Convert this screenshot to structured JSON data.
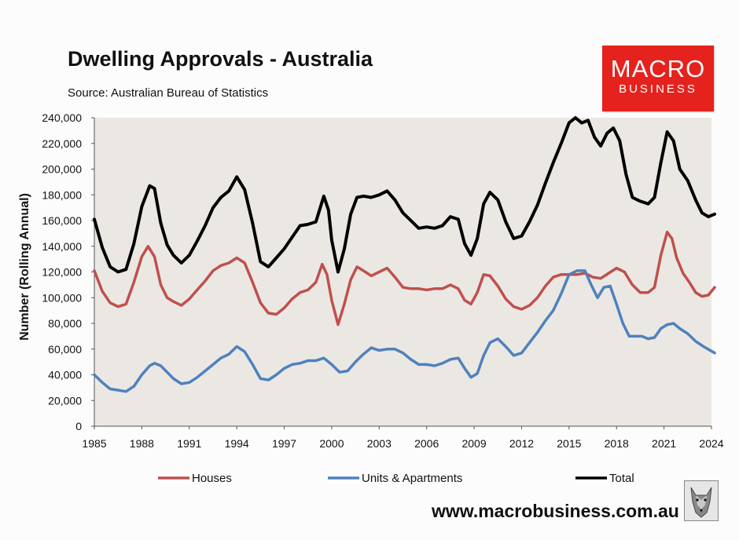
{
  "header": {
    "title": "Dwelling Approvals - Australia",
    "source": "Source: Australian Bureau of Statistics"
  },
  "logo": {
    "line1": "MACRO",
    "line2": "BUSINESS",
    "color": "#e5221d"
  },
  "footer": {
    "website": "www.macrobusiness.com.au",
    "wolf_icon": "wolf-head-icon"
  },
  "chart_data": {
    "type": "line",
    "title": "Dwelling Approvals - Australia",
    "ylabel": "Number (Rolling Annual)",
    "xlabel": "",
    "ylim": [
      0,
      240000
    ],
    "xlim": [
      1985,
      2024
    ],
    "y_ticks": [
      "0",
      "20,000",
      "40,000",
      "60,000",
      "80,000",
      "100,000",
      "120,000",
      "140,000",
      "160,000",
      "180,000",
      "200,000",
      "220,000",
      "240,000"
    ],
    "x_ticks": [
      "1985",
      "1988",
      "1991",
      "1994",
      "1997",
      "2000",
      "2003",
      "2006",
      "2009",
      "2012",
      "2015",
      "2018",
      "2021",
      "2024"
    ],
    "plot_background": "#ebe8e4",
    "grid": false,
    "legend_position": "bottom",
    "series": [
      {
        "name": "Houses",
        "color": "#c0504d",
        "points": [
          [
            1985,
            121000
          ],
          [
            1985.5,
            105000
          ],
          [
            1986,
            96000
          ],
          [
            1986.5,
            93000
          ],
          [
            1987,
            95000
          ],
          [
            1987.5,
            112000
          ],
          [
            1988,
            132000
          ],
          [
            1988.4,
            140000
          ],
          [
            1988.8,
            132000
          ],
          [
            1989.2,
            110000
          ],
          [
            1989.6,
            100000
          ],
          [
            1990,
            97000
          ],
          [
            1990.5,
            94000
          ],
          [
            1991,
            99000
          ],
          [
            1991.5,
            106000
          ],
          [
            1992,
            113000
          ],
          [
            1992.5,
            121000
          ],
          [
            1993,
            125000
          ],
          [
            1993.5,
            127000
          ],
          [
            1994,
            131000
          ],
          [
            1994.5,
            127000
          ],
          [
            1995,
            112000
          ],
          [
            1995.5,
            96000
          ],
          [
            1996,
            88000
          ],
          [
            1996.5,
            87000
          ],
          [
            1997,
            92000
          ],
          [
            1997.5,
            99000
          ],
          [
            1998,
            104000
          ],
          [
            1998.5,
            106000
          ],
          [
            1999,
            112000
          ],
          [
            1999.4,
            126000
          ],
          [
            1999.7,
            118000
          ],
          [
            2000,
            98000
          ],
          [
            2000.4,
            79000
          ],
          [
            2000.8,
            95000
          ],
          [
            2001.2,
            114000
          ],
          [
            2001.6,
            124000
          ],
          [
            2002,
            121000
          ],
          [
            2002.5,
            117000
          ],
          [
            2003,
            120000
          ],
          [
            2003.5,
            123000
          ],
          [
            2004,
            116000
          ],
          [
            2004.5,
            108000
          ],
          [
            2005,
            107000
          ],
          [
            2005.5,
            107000
          ],
          [
            2006,
            106000
          ],
          [
            2006.5,
            107000
          ],
          [
            2007,
            107000
          ],
          [
            2007.5,
            110000
          ],
          [
            2008,
            107000
          ],
          [
            2008.4,
            98000
          ],
          [
            2008.8,
            95000
          ],
          [
            2009.2,
            104000
          ],
          [
            2009.6,
            118000
          ],
          [
            2010,
            117000
          ],
          [
            2010.5,
            109000
          ],
          [
            2011,
            99000
          ],
          [
            2011.5,
            93000
          ],
          [
            2012,
            91000
          ],
          [
            2012.5,
            94000
          ],
          [
            2013,
            100000
          ],
          [
            2013.5,
            109000
          ],
          [
            2014,
            116000
          ],
          [
            2014.5,
            118000
          ],
          [
            2015,
            118000
          ],
          [
            2015.5,
            118000
          ],
          [
            2016,
            119000
          ],
          [
            2016.5,
            116000
          ],
          [
            2017,
            115000
          ],
          [
            2017.5,
            119000
          ],
          [
            2018,
            123000
          ],
          [
            2018.5,
            120000
          ],
          [
            2019,
            110000
          ],
          [
            2019.5,
            104000
          ],
          [
            2020,
            104000
          ],
          [
            2020.4,
            108000
          ],
          [
            2020.8,
            133000
          ],
          [
            2021.2,
            151000
          ],
          [
            2021.5,
            146000
          ],
          [
            2021.8,
            131000
          ],
          [
            2022.2,
            119000
          ],
          [
            2022.6,
            112000
          ],
          [
            2023,
            104000
          ],
          [
            2023.4,
            101000
          ],
          [
            2023.8,
            102000
          ],
          [
            2024.2,
            108000
          ]
        ]
      },
      {
        "name": "Units & Apartments",
        "color": "#4f81bd",
        "points": [
          [
            1985,
            40000
          ],
          [
            1985.5,
            34000
          ],
          [
            1986,
            29000
          ],
          [
            1986.5,
            28000
          ],
          [
            1987,
            27000
          ],
          [
            1987.5,
            31000
          ],
          [
            1988,
            40000
          ],
          [
            1988.5,
            47000
          ],
          [
            1988.8,
            49000
          ],
          [
            1989.2,
            47000
          ],
          [
            1989.6,
            42000
          ],
          [
            1990,
            37000
          ],
          [
            1990.5,
            33000
          ],
          [
            1991,
            34000
          ],
          [
            1991.5,
            38000
          ],
          [
            1992,
            43000
          ],
          [
            1992.5,
            48000
          ],
          [
            1993,
            53000
          ],
          [
            1993.5,
            56000
          ],
          [
            1994,
            62000
          ],
          [
            1994.5,
            58000
          ],
          [
            1995,
            48000
          ],
          [
            1995.5,
            37000
          ],
          [
            1996,
            36000
          ],
          [
            1996.5,
            40000
          ],
          [
            1997,
            45000
          ],
          [
            1997.5,
            48000
          ],
          [
            1998,
            49000
          ],
          [
            1998.5,
            51000
          ],
          [
            1999,
            51000
          ],
          [
            1999.5,
            53000
          ],
          [
            2000,
            48000
          ],
          [
            2000.5,
            42000
          ],
          [
            2001,
            43000
          ],
          [
            2001.5,
            50000
          ],
          [
            2002,
            56000
          ],
          [
            2002.5,
            61000
          ],
          [
            2003,
            59000
          ],
          [
            2003.5,
            60000
          ],
          [
            2004,
            60000
          ],
          [
            2004.5,
            57000
          ],
          [
            2005,
            52000
          ],
          [
            2005.5,
            48000
          ],
          [
            2006,
            48000
          ],
          [
            2006.5,
            47000
          ],
          [
            2007,
            49000
          ],
          [
            2007.5,
            52000
          ],
          [
            2008,
            53000
          ],
          [
            2008.4,
            45000
          ],
          [
            2008.8,
            38000
          ],
          [
            2009.2,
            41000
          ],
          [
            2009.6,
            55000
          ],
          [
            2010,
            65000
          ],
          [
            2010.5,
            68000
          ],
          [
            2011,
            62000
          ],
          [
            2011.5,
            55000
          ],
          [
            2012,
            57000
          ],
          [
            2012.5,
            65000
          ],
          [
            2013,
            73000
          ],
          [
            2013.5,
            82000
          ],
          [
            2014,
            90000
          ],
          [
            2014.5,
            103000
          ],
          [
            2015,
            118000
          ],
          [
            2015.5,
            121000
          ],
          [
            2016,
            121000
          ],
          [
            2016.4,
            110000
          ],
          [
            2016.8,
            100000
          ],
          [
            2017.2,
            108000
          ],
          [
            2017.6,
            109000
          ],
          [
            2018,
            95000
          ],
          [
            2018.4,
            80000
          ],
          [
            2018.8,
            70000
          ],
          [
            2019.2,
            70000
          ],
          [
            2019.6,
            70000
          ],
          [
            2020,
            68000
          ],
          [
            2020.4,
            69000
          ],
          [
            2020.8,
            76000
          ],
          [
            2021.2,
            79000
          ],
          [
            2021.6,
            80000
          ],
          [
            2022,
            76000
          ],
          [
            2022.5,
            72000
          ],
          [
            2023,
            66000
          ],
          [
            2023.5,
            62000
          ],
          [
            2024.2,
            57000
          ]
        ]
      },
      {
        "name": "Total",
        "color": "#000000",
        "points": [
          [
            1985,
            161000
          ],
          [
            1985.5,
            139000
          ],
          [
            1986,
            124000
          ],
          [
            1986.5,
            120000
          ],
          [
            1987,
            122000
          ],
          [
            1987.5,
            142000
          ],
          [
            1988,
            171000
          ],
          [
            1988.5,
            187000
          ],
          [
            1988.8,
            185000
          ],
          [
            1989.2,
            158000
          ],
          [
            1989.6,
            141000
          ],
          [
            1990,
            133000
          ],
          [
            1990.5,
            127000
          ],
          [
            1991,
            133000
          ],
          [
            1991.5,
            144000
          ],
          [
            1992,
            156000
          ],
          [
            1992.5,
            170000
          ],
          [
            1993,
            178000
          ],
          [
            1993.5,
            183000
          ],
          [
            1994,
            194000
          ],
          [
            1994.5,
            184000
          ],
          [
            1995,
            158000
          ],
          [
            1995.5,
            128000
          ],
          [
            1996,
            124000
          ],
          [
            1996.5,
            131000
          ],
          [
            1997,
            138000
          ],
          [
            1997.5,
            147000
          ],
          [
            1998,
            156000
          ],
          [
            1998.5,
            157000
          ],
          [
            1999,
            159000
          ],
          [
            1999.5,
            179000
          ],
          [
            1999.8,
            168000
          ],
          [
            2000,
            145000
          ],
          [
            2000.4,
            120000
          ],
          [
            2000.8,
            138000
          ],
          [
            2001.2,
            165000
          ],
          [
            2001.6,
            178000
          ],
          [
            2002,
            179000
          ],
          [
            2002.5,
            178000
          ],
          [
            2003,
            180000
          ],
          [
            2003.5,
            183000
          ],
          [
            2004,
            176000
          ],
          [
            2004.5,
            166000
          ],
          [
            2005,
            160000
          ],
          [
            2005.5,
            154000
          ],
          [
            2006,
            155000
          ],
          [
            2006.5,
            154000
          ],
          [
            2007,
            156000
          ],
          [
            2007.5,
            163000
          ],
          [
            2008,
            161000
          ],
          [
            2008.4,
            142000
          ],
          [
            2008.8,
            133000
          ],
          [
            2009.2,
            146000
          ],
          [
            2009.6,
            173000
          ],
          [
            2010,
            182000
          ],
          [
            2010.5,
            176000
          ],
          [
            2011,
            159000
          ],
          [
            2011.5,
            146000
          ],
          [
            2012,
            148000
          ],
          [
            2012.5,
            159000
          ],
          [
            2013,
            172000
          ],
          [
            2013.5,
            189000
          ],
          [
            2014,
            205000
          ],
          [
            2014.5,
            220000
          ],
          [
            2015,
            236000
          ],
          [
            2015.4,
            240000
          ],
          [
            2015.8,
            236000
          ],
          [
            2016.2,
            238000
          ],
          [
            2016.6,
            225000
          ],
          [
            2017,
            218000
          ],
          [
            2017.4,
            228000
          ],
          [
            2017.8,
            232000
          ],
          [
            2018.2,
            222000
          ],
          [
            2018.6,
            196000
          ],
          [
            2019,
            178000
          ],
          [
            2019.5,
            175000
          ],
          [
            2020,
            173000
          ],
          [
            2020.4,
            178000
          ],
          [
            2020.8,
            205000
          ],
          [
            2021.2,
            229000
          ],
          [
            2021.6,
            222000
          ],
          [
            2022,
            200000
          ],
          [
            2022.5,
            191000
          ],
          [
            2023,
            176000
          ],
          [
            2023.4,
            166000
          ],
          [
            2023.8,
            163000
          ],
          [
            2024.2,
            165000
          ]
        ]
      }
    ]
  }
}
